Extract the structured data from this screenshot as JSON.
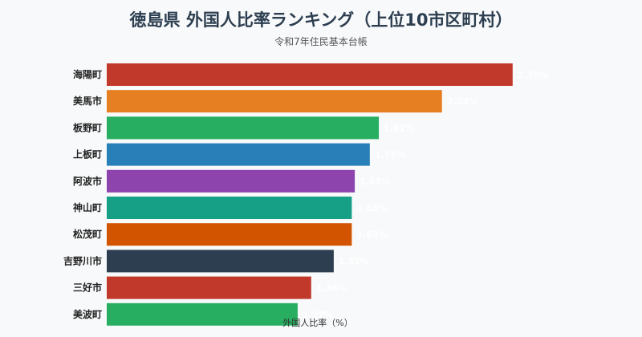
{
  "chart_data": {
    "type": "bar",
    "orientation": "horizontal",
    "title": "徳島県 外国人比率ランキング（上位10市区町村）",
    "subtitle": "令和7年住民基本台帳",
    "xlabel": "外国人比率（%）",
    "ylabel": "",
    "xlim": [
      0,
      3.0
    ],
    "grid": false,
    "categories": [
      "海陽町",
      "美馬市",
      "板野町",
      "上板町",
      "阿波市",
      "神山町",
      "松茂町",
      "吉野川市",
      "三好市",
      "美波町"
    ],
    "values": [
      2.7,
      2.23,
      1.81,
      1.75,
      1.65,
      1.63,
      1.63,
      1.51,
      1.36,
      1.27
    ],
    "value_labels": [
      "2.70%",
      "2.23%",
      "1.81%",
      "1.75%",
      "1.65%",
      "1.63%",
      "1.63%",
      "1.51%",
      "1.36%",
      "1.27%"
    ],
    "colors": [
      "#c0392b",
      "#e67e22",
      "#27ae60",
      "#2980b9",
      "#8e44ad",
      "#16a085",
      "#d35400",
      "#2c3e50",
      "#c0392b",
      "#27ae60"
    ]
  }
}
